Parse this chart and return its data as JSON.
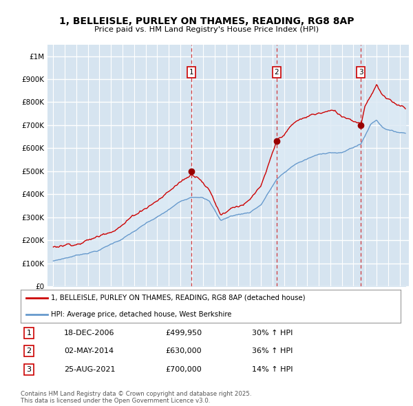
{
  "title": "1, BELLEISLE, PURLEY ON THAMES, READING, RG8 8AP",
  "subtitle": "Price paid vs. HM Land Registry's House Price Index (HPI)",
  "red_label": "1, BELLEISLE, PURLEY ON THAMES, READING, RG8 8AP (detached house)",
  "blue_label": "HPI: Average price, detached house, West Berkshire",
  "sale_markers": [
    {
      "num": 1,
      "date": "18-DEC-2006",
      "price": 499950,
      "pct": "30%",
      "direction": "↑"
    },
    {
      "num": 2,
      "date": "02-MAY-2014",
      "price": 630000,
      "pct": "36%",
      "direction": "↑"
    },
    {
      "num": 3,
      "date": "25-AUG-2021",
      "price": 700000,
      "pct": "14%",
      "direction": "↑"
    }
  ],
  "sale_years": [
    2006.96,
    2014.33,
    2021.65
  ],
  "sale_prices": [
    499950,
    630000,
    700000
  ],
  "ylim": [
    0,
    1050000
  ],
  "yticks": [
    0,
    100000,
    200000,
    300000,
    400000,
    500000,
    600000,
    700000,
    800000,
    900000,
    1000000
  ],
  "ytick_labels": [
    "£0",
    "£100K",
    "£200K",
    "£300K",
    "£400K",
    "£500K",
    "£600K",
    "£700K",
    "£800K",
    "£900K",
    "£1M"
  ],
  "background_color": "#d6e4f0",
  "red_color": "#cc0000",
  "blue_color": "#6699cc",
  "fill_blue_color": "#c5d8ed",
  "grid_color": "#ffffff",
  "footer_text": "Contains HM Land Registry data © Crown copyright and database right 2025.\nThis data is licensed under the Open Government Licence v3.0.",
  "xmin": 1994.5,
  "xmax": 2025.8
}
